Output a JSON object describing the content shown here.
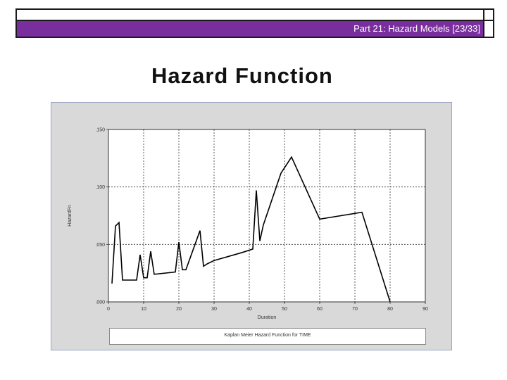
{
  "header": {
    "slide_label": "Part 21: Hazard Models [23/33]",
    "accent_color": "#7a2e9e"
  },
  "slide": {
    "title": "Hazard Function"
  },
  "chart_data": {
    "type": "line",
    "xlabel": "Duration",
    "ylabel": "HazardFn",
    "xlim": [
      0,
      90
    ],
    "ylim": [
      0.0,
      0.15
    ],
    "x_ticks": [
      0,
      10,
      20,
      30,
      40,
      50,
      60,
      70,
      80,
      90
    ],
    "x_tick_labels": [
      "0",
      "10",
      "20",
      "30",
      "40",
      "50",
      "60",
      "70",
      "80",
      "90"
    ],
    "y_ticks": [
      0.0,
      0.05,
      0.1,
      0.15
    ],
    "y_tick_labels": [
      ".000",
      ".050",
      ".100",
      ".150"
    ],
    "grid": true,
    "legend": "Kaplan Meier Hazard Function for TIME",
    "series": [
      {
        "x": [
          1,
          2,
          3,
          4,
          8,
          9,
          10,
          11,
          12,
          13,
          19,
          20,
          21,
          22,
          26,
          27,
          28,
          30,
          38,
          41,
          42,
          43,
          44,
          49,
          52,
          60,
          72,
          80
        ],
        "y": [
          0.016,
          0.066,
          0.069,
          0.019,
          0.019,
          0.041,
          0.021,
          0.021,
          0.044,
          0.024,
          0.026,
          0.052,
          0.028,
          0.028,
          0.062,
          0.031,
          0.033,
          0.036,
          0.043,
          0.046,
          0.097,
          0.053,
          0.067,
          0.112,
          0.126,
          0.072,
          0.078,
          0.0
        ]
      }
    ]
  }
}
